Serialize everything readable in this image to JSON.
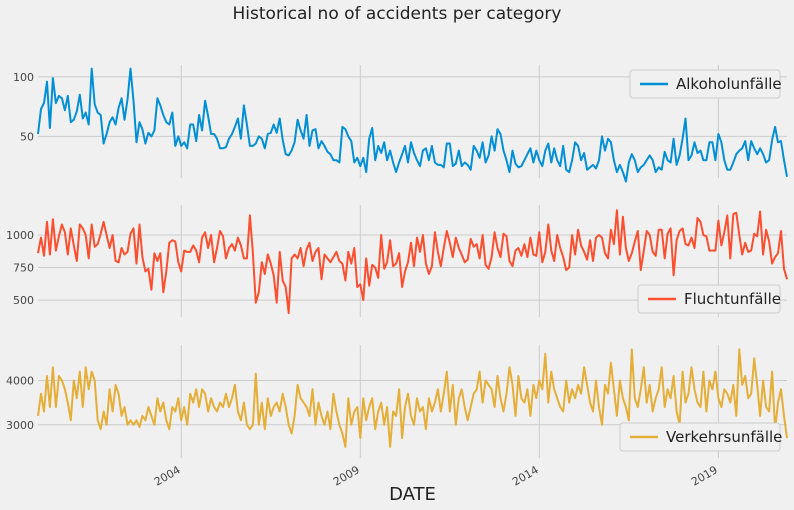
{
  "chart_data": {
    "type": "line",
    "title": "Historical no of accidents per category",
    "xlabel": "DATE",
    "x_start": "2000-01",
    "x_end": "2020-12",
    "frequency": "monthly",
    "x_ticks": [
      "2004",
      "2009",
      "2014",
      "2019"
    ],
    "grid": true,
    "panels": [
      {
        "name": "Alkoholunfälle",
        "color": "#008fd5",
        "ylim": [
          15,
          110
        ],
        "yticks": [
          50,
          100
        ],
        "legend": "top-right",
        "annual_values": [
          [
            52,
            73,
            78,
            96,
            57,
            99,
            78,
            84,
            82,
            72,
            84,
            62
          ],
          [
            64,
            71,
            85,
            65,
            70,
            60,
            107,
            77,
            70,
            68,
            44,
            52
          ],
          [
            62,
            66,
            60,
            74,
            82,
            64,
            81,
            107,
            80,
            45,
            62,
            56
          ],
          [
            44,
            53,
            50,
            55,
            82,
            76,
            68,
            62,
            60,
            70,
            42,
            50
          ],
          [
            42,
            45,
            40,
            60,
            60,
            46,
            68,
            55,
            80,
            67,
            52,
            52
          ],
          [
            48,
            40,
            40,
            41,
            48,
            52,
            58,
            65,
            48,
            76,
            60,
            42
          ],
          [
            42,
            44,
            50,
            48,
            40,
            52,
            53,
            60,
            53,
            65,
            47,
            35
          ],
          [
            34,
            38,
            45,
            64,
            55,
            48,
            68,
            42,
            55,
            56,
            40,
            46
          ],
          [
            42,
            37,
            35,
            30,
            30,
            28,
            58,
            56,
            50,
            46,
            28,
            32
          ],
          [
            25,
            32,
            20,
            48,
            57,
            30,
            42,
            36,
            45,
            30,
            38,
            28
          ],
          [
            20,
            28,
            35,
            42,
            28,
            45,
            36,
            30,
            25,
            38,
            40,
            30
          ],
          [
            42,
            28,
            26,
            26,
            24,
            44,
            44,
            25,
            27,
            38,
            25,
            28
          ],
          [
            26,
            22,
            42,
            38,
            32,
            45,
            28,
            34,
            50,
            38,
            56,
            52
          ],
          [
            38,
            30,
            20,
            38,
            27,
            24,
            25,
            30,
            35,
            40,
            28,
            38
          ],
          [
            30,
            25,
            38,
            44,
            28,
            40,
            30,
            25,
            42,
            22,
            20,
            30
          ],
          [
            45,
            42,
            30,
            36,
            22,
            24,
            26,
            23,
            30,
            50,
            38,
            48
          ],
          [
            45,
            30,
            20,
            26,
            20,
            12,
            28,
            35,
            30,
            20,
            24,
            26
          ],
          [
            30,
            34,
            30,
            20,
            24,
            22,
            37,
            30,
            28,
            48,
            26,
            34
          ],
          [
            48,
            65,
            30,
            34,
            45,
            36,
            38,
            30,
            30,
            45,
            45,
            30
          ],
          [
            52,
            45,
            30,
            22,
            22,
            28,
            35,
            38,
            40,
            46,
            30,
            46
          ],
          [
            40,
            35,
            40,
            35,
            28,
            30,
            47,
            58,
            45,
            46,
            30,
            16
          ]
        ]
      },
      {
        "name": "Fluchtunfälle",
        "color": "#fc4f30",
        "ylim": [
          370,
          1230
        ],
        "yticks": [
          500,
          750,
          1000
        ],
        "legend": "bottom-right",
        "annual_values": [
          [
            860,
            980,
            840,
            1100,
            850,
            1120,
            880,
            990,
            1080,
            1020,
            850,
            1050
          ],
          [
            920,
            800,
            1080,
            1050,
            1000,
            820,
            1080,
            910,
            930,
            1010,
            1100,
            1000
          ],
          [
            900,
            1000,
            800,
            790,
            900,
            850,
            870,
            1010,
            1050,
            780,
            1080,
            830
          ],
          [
            720,
            740,
            580,
            860,
            800,
            860,
            560,
            720,
            940,
            960,
            950,
            790
          ],
          [
            720,
            880,
            870,
            870,
            920,
            880,
            790,
            980,
            1020,
            900,
            1000,
            790
          ],
          [
            900,
            1030,
            990,
            820,
            900,
            930,
            880,
            980,
            920,
            820,
            820,
            1150
          ],
          [
            860,
            480,
            560,
            790,
            700,
            850,
            780,
            690,
            480,
            870,
            650,
            600
          ],
          [
            400,
            820,
            850,
            820,
            900,
            760,
            890,
            940,
            800,
            870,
            900,
            660
          ],
          [
            850,
            820,
            790,
            830,
            870,
            800,
            780,
            650,
            870,
            780,
            900,
            600
          ],
          [
            620,
            500,
            820,
            610,
            770,
            750,
            670,
            1000,
            740,
            790,
            960,
            760
          ],
          [
            780,
            860,
            600,
            720,
            790,
            940,
            760,
            980,
            870,
            1000,
            780,
            700
          ],
          [
            760,
            1020,
            870,
            760,
            900,
            1030,
            940,
            830,
            980,
            900,
            850,
            790
          ],
          [
            810,
            970,
            910,
            930,
            820,
            1000,
            770,
            740,
            830,
            1020,
            900,
            830
          ],
          [
            1010,
            990,
            800,
            760,
            880,
            900,
            840,
            930,
            830,
            980,
            850,
            840
          ],
          [
            1020,
            790,
            870,
            1080,
            880,
            800,
            1000,
            900,
            830,
            730,
            750,
            1000
          ],
          [
            850,
            1040,
            920,
            870,
            810,
            960,
            800,
            980,
            1000,
            980,
            860,
            820
          ],
          [
            1040,
            930,
            1190,
            850,
            1140,
            900,
            800,
            860,
            950,
            1030,
            730,
            880
          ],
          [
            1030,
            1000,
            870,
            840,
            1040,
            1040,
            820,
            1010,
            1050,
            690,
            960,
            1030
          ],
          [
            1050,
            930,
            920,
            980,
            900,
            1130,
            1100,
            1000,
            990,
            880,
            880,
            880
          ],
          [
            1110,
            920,
            1020,
            1150,
            820,
            1160,
            1170,
            1000,
            850,
            940,
            870,
            880
          ],
          [
            1010,
            990,
            1180,
            850,
            1040,
            950,
            780,
            830,
            860,
            1030,
            740,
            660
          ]
        ]
      },
      {
        "name": "Verkehrsunfälle",
        "color": "#e5ae38",
        "ylim": [
          2250,
          4800
        ],
        "yticks": [
          3000,
          4000
        ],
        "legend": "bottom-right",
        "annual_values": [
          [
            3200,
            3700,
            3300,
            4100,
            3400,
            4300,
            3400,
            4100,
            4000,
            3800,
            3500,
            3100
          ],
          [
            4000,
            3600,
            4200,
            3400,
            4300,
            3800,
            4200,
            4000,
            3100,
            2900,
            3300,
            3000
          ],
          [
            3800,
            3300,
            3900,
            3700,
            3200,
            3400,
            3000,
            3100,
            3000,
            3100,
            2950,
            3200
          ],
          [
            3100,
            3400,
            3200,
            3000,
            3600,
            3300,
            3500,
            3100,
            2900,
            3400,
            3300,
            3600
          ],
          [
            3100,
            3400,
            3000,
            3700,
            3500,
            3800,
            3400,
            3800,
            3700,
            3300,
            3600,
            3400
          ],
          [
            3300,
            3500,
            3400,
            3700,
            3400,
            3600,
            3900,
            3300,
            3100,
            3500,
            3000,
            2900
          ],
          [
            3000,
            4150,
            3000,
            3500,
            2900,
            3600,
            3200,
            3400,
            3500,
            3300,
            3700,
            3400
          ],
          [
            3000,
            2800,
            3200,
            3900,
            3600,
            3500,
            3400,
            3200,
            3800,
            3000,
            3500,
            3200
          ],
          [
            3000,
            3300,
            2900,
            3700,
            3300,
            3000,
            2800,
            2500,
            3600,
            3000,
            3300,
            3400
          ],
          [
            2700,
            3600,
            3100,
            3400,
            3600,
            2900,
            3300,
            3500,
            3000,
            3400,
            2500,
            3300
          ],
          [
            3200,
            3800,
            2700,
            3400,
            3700,
            3200,
            3000,
            3600,
            3300,
            3400,
            2900,
            3600
          ],
          [
            3300,
            3500,
            3800,
            3300,
            3700,
            4200,
            3300,
            3900,
            3000,
            3600,
            3800,
            3400
          ],
          [
            3100,
            3400,
            3700,
            3800,
            4200,
            3500,
            4000,
            3900,
            3800,
            3400,
            4100,
            3600
          ],
          [
            3300,
            3700,
            4300,
            3900,
            3200,
            4100,
            3600,
            3500,
            3800,
            3200,
            3900,
            3600
          ],
          [
            4000,
            3800,
            4600,
            3500,
            4200,
            3800,
            3600,
            3400,
            3300,
            4000,
            3500,
            3800
          ],
          [
            3600,
            3900,
            3700,
            4300,
            3900,
            3500,
            3300,
            4000,
            3400,
            3000,
            3900,
            3700
          ],
          [
            4400,
            3800,
            3200,
            4000,
            3600,
            3400,
            3100,
            4700,
            3600,
            3400,
            3800,
            4300
          ],
          [
            3500,
            3900,
            3300,
            3600,
            3800,
            4300,
            3400,
            3800,
            3600,
            4100,
            3300,
            3000
          ],
          [
            4200,
            3500,
            3700,
            4300,
            3800,
            3500,
            3400,
            4200,
            3300,
            4000,
            3800,
            4200
          ],
          [
            3600,
            3400,
            3800,
            3700,
            3500,
            3900,
            3200,
            4700,
            3900,
            4100,
            3600,
            3700
          ],
          [
            4500,
            3900,
            3200,
            4000,
            3400,
            3300,
            4200,
            2900,
            3500,
            3800,
            3200,
            2700
          ]
        ]
      }
    ]
  }
}
